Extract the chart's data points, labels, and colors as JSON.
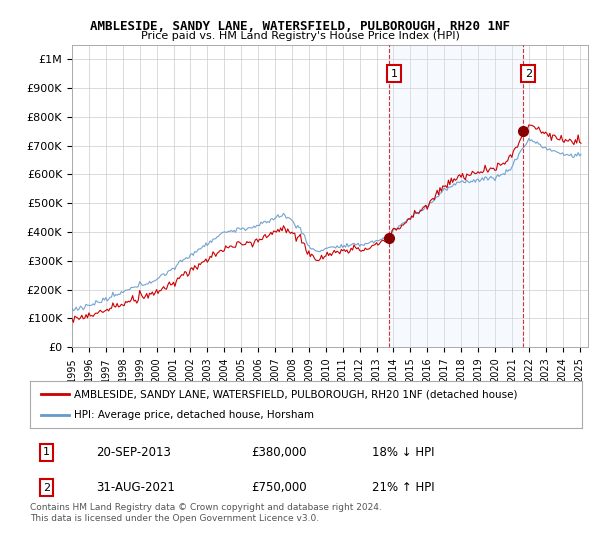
{
  "title": "AMBLESIDE, SANDY LANE, WATERSFIELD, PULBOROUGH, RH20 1NF",
  "subtitle": "Price paid vs. HM Land Registry's House Price Index (HPI)",
  "legend_label_red": "AMBLESIDE, SANDY LANE, WATERSFIELD, PULBOROUGH, RH20 1NF (detached house)",
  "legend_label_blue": "HPI: Average price, detached house, Horsham",
  "footnote": "Contains HM Land Registry data © Crown copyright and database right 2024.\nThis data is licensed under the Open Government Licence v3.0.",
  "annotation1_date": "20-SEP-2013",
  "annotation1_price": "£380,000",
  "annotation1_hpi": "18% ↓ HPI",
  "annotation2_date": "31-AUG-2021",
  "annotation2_price": "£750,000",
  "annotation2_hpi": "21% ↑ HPI",
  "ylim": [
    0,
    1000000
  ],
  "yticks": [
    0,
    100000,
    200000,
    300000,
    400000,
    500000,
    600000,
    700000,
    800000,
    900000,
    1000000
  ],
  "ytick_labels": [
    "£0",
    "£100K",
    "£200K",
    "£300K",
    "£400K",
    "£500K",
    "£600K",
    "£700K",
    "£800K",
    "£900K",
    "£1M"
  ],
  "red_color": "#cc0000",
  "blue_color": "#6699cc",
  "shade_color": "#ddeeff",
  "background_color": "#ffffff",
  "sale_x1": 2013.75,
  "sale_y1": 380000,
  "sale_x2": 2021.67,
  "sale_y2": 750000,
  "xmin": 1995,
  "xmax": 2025.5
}
